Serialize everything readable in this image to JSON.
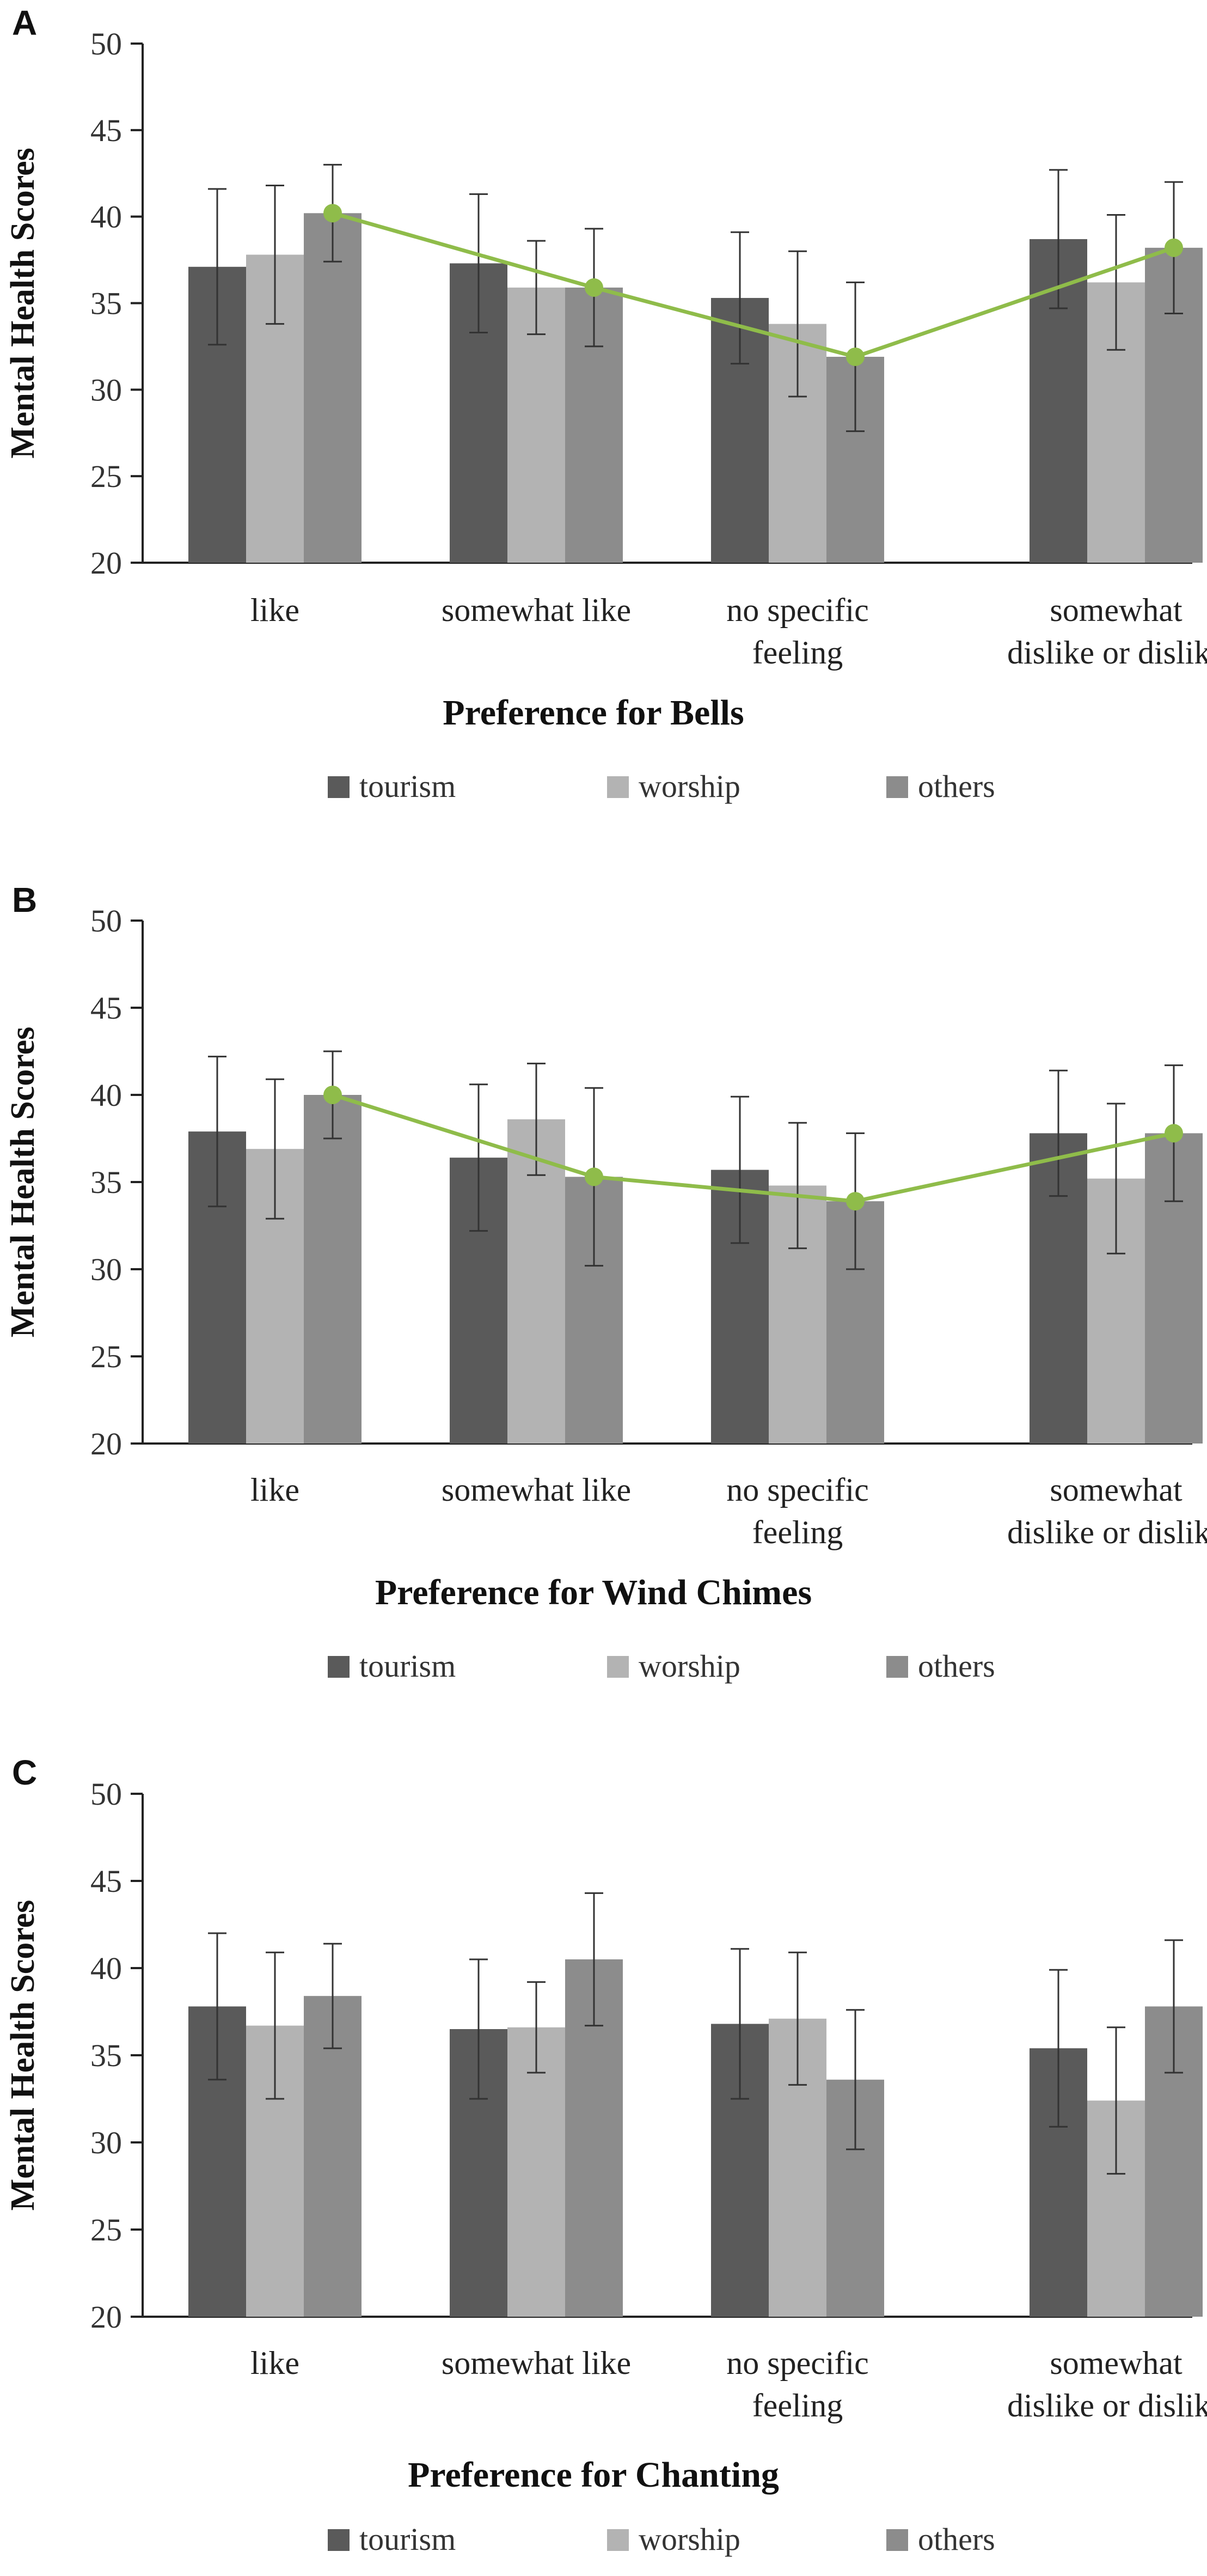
{
  "figure": {
    "colors": {
      "tourism": "#5a5a5a",
      "worship": "#b3b3b3",
      "others": "#8c8c8c",
      "trend": "#8fbc4a",
      "axis": "#222222",
      "errorbar": "#333333"
    },
    "legend": [
      "tourism",
      "worship",
      "others"
    ]
  },
  "chart_data": [
    {
      "panel": "A",
      "type": "bar",
      "title": "",
      "xlabel": "Preference for Bells",
      "ylabel": "Mental Health Scores",
      "ylim": [
        20,
        50
      ],
      "yticks": [
        20,
        25,
        30,
        35,
        40,
        45,
        50
      ],
      "categories": [
        [
          "like"
        ],
        [
          "somewhat like"
        ],
        [
          "no specific",
          "feeling"
        ],
        [
          "somewhat",
          "dislike or dislike"
        ]
      ],
      "series": [
        {
          "name": "tourism",
          "values": [
            37.1,
            37.3,
            35.3,
            38.7
          ],
          "errors": [
            4.5,
            4.0,
            3.8,
            4.0
          ]
        },
        {
          "name": "worship",
          "values": [
            37.8,
            35.9,
            33.8,
            36.2
          ],
          "errors": [
            4.0,
            2.7,
            4.2,
            3.9
          ]
        },
        {
          "name": "others",
          "values": [
            40.2,
            35.9,
            31.9,
            38.2
          ],
          "errors": [
            2.8,
            3.4,
            4.3,
            3.8
          ]
        }
      ],
      "trend_line": {
        "series": "others",
        "values": [
          40.2,
          35.9,
          31.9,
          38.2
        ]
      }
    },
    {
      "panel": "B",
      "type": "bar",
      "title": "",
      "xlabel": "Preference for Wind Chimes",
      "ylabel": "Mental Health Scores",
      "ylim": [
        20,
        50
      ],
      "yticks": [
        20,
        25,
        30,
        35,
        40,
        45,
        50
      ],
      "categories": [
        [
          "like"
        ],
        [
          "somewhat like"
        ],
        [
          "no specific",
          "feeling"
        ],
        [
          "somewhat",
          "dislike or dislike"
        ]
      ],
      "series": [
        {
          "name": "tourism",
          "values": [
            37.9,
            36.4,
            35.7,
            37.8
          ],
          "errors": [
            4.3,
            4.2,
            4.2,
            3.6
          ]
        },
        {
          "name": "worship",
          "values": [
            36.9,
            38.6,
            34.8,
            35.2
          ],
          "errors": [
            4.0,
            3.2,
            3.6,
            4.3
          ]
        },
        {
          "name": "others",
          "values": [
            40.0,
            35.3,
            33.9,
            37.8
          ],
          "errors": [
            2.5,
            5.1,
            3.9,
            3.9
          ]
        }
      ],
      "trend_line": {
        "series": "others",
        "values": [
          40.0,
          35.3,
          33.9,
          37.8
        ]
      }
    },
    {
      "panel": "C",
      "type": "bar",
      "title": "",
      "xlabel": "Preference for Chanting",
      "ylabel": "Mental Health Scores",
      "ylim": [
        20,
        50
      ],
      "yticks": [
        20,
        25,
        30,
        35,
        40,
        45,
        50
      ],
      "categories": [
        [
          "like"
        ],
        [
          "somewhat like"
        ],
        [
          "no specific",
          "feeling"
        ],
        [
          "somewhat",
          "dislike or dislike"
        ]
      ],
      "series": [
        {
          "name": "tourism",
          "values": [
            37.8,
            36.5,
            36.8,
            35.4
          ],
          "errors": [
            4.2,
            4.0,
            4.3,
            4.5
          ]
        },
        {
          "name": "worship",
          "values": [
            36.7,
            36.6,
            37.1,
            32.4
          ],
          "errors": [
            4.2,
            2.6,
            3.8,
            4.2
          ]
        },
        {
          "name": "others",
          "values": [
            38.4,
            40.5,
            33.6,
            37.8
          ],
          "errors": [
            3.0,
            3.8,
            4.0,
            3.8
          ]
        }
      ]
    }
  ]
}
